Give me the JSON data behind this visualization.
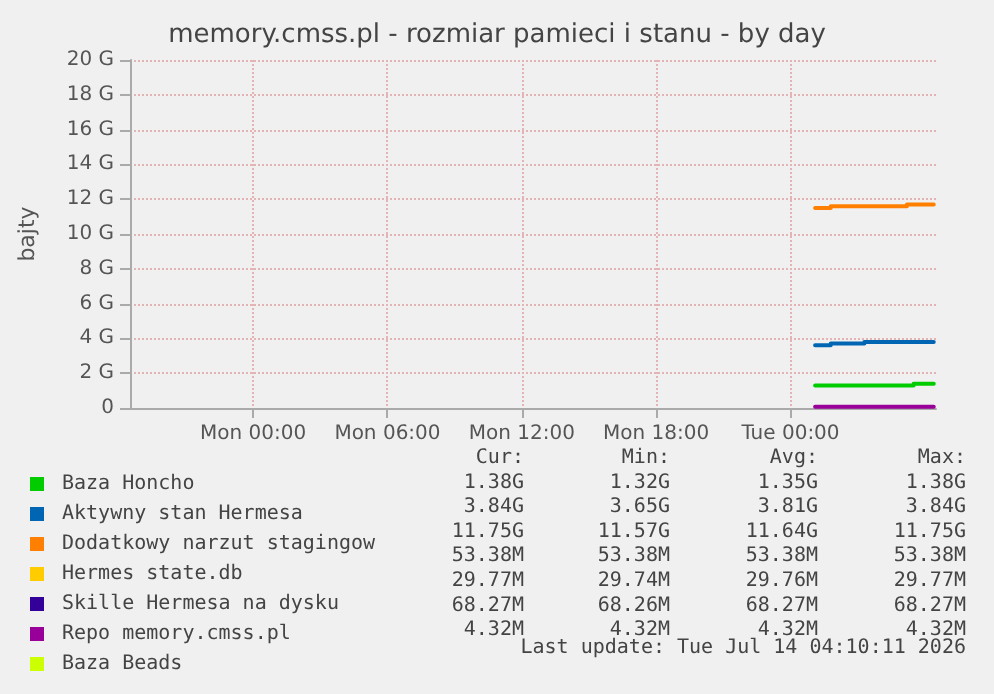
{
  "chart_data": {
    "type": "step",
    "title": "memory.cmss.pl - rozmiar pamieci i stanu - by day",
    "ylabel": "bajty",
    "xlim": [
      "2026-07-12T18:30",
      "2026-07-14T06:30"
    ],
    "xticks": [
      {
        "value": "2026-07-13T00:00",
        "label": "Mon 00:00"
      },
      {
        "value": "2026-07-13T06:00",
        "label": "Mon 06:00"
      },
      {
        "value": "2026-07-13T12:00",
        "label": "Mon 12:00"
      },
      {
        "value": "2026-07-13T18:00",
        "label": "Mon 18:00"
      },
      {
        "value": "2026-07-14T00:00",
        "label": "Tue 00:00"
      }
    ],
    "ylim": [
      0,
      20
    ],
    "yticks": [
      {
        "value": 0,
        "label": "0"
      },
      {
        "value": 2,
        "label": "2 G"
      },
      {
        "value": 4,
        "label": "4 G"
      },
      {
        "value": 6,
        "label": "6 G"
      },
      {
        "value": 8,
        "label": "8 G"
      },
      {
        "value": 10,
        "label": "10 G"
      },
      {
        "value": 12,
        "label": "12 G"
      },
      {
        "value": 14,
        "label": "14 G"
      },
      {
        "value": 16,
        "label": "16 G"
      },
      {
        "value": 18,
        "label": "18 G"
      },
      {
        "value": 20,
        "label": "20 G"
      }
    ],
    "grid": true,
    "legend": "bottom",
    "marker": "none",
    "line_style": "solid",
    "series": [
      {
        "name": "Baza Honcho",
        "color": "#00cc00",
        "x": [
          "2026-07-14T01:06",
          "2026-07-14T05:30",
          "2026-07-14T06:24"
        ],
        "values": [
          1.3,
          1.4,
          1.4
        ]
      },
      {
        "name": "Aktywny stan Hermesa",
        "color": "#0066b3",
        "x": [
          "2026-07-14T01:06",
          "2026-07-14T01:48",
          "2026-07-14T03:18",
          "2026-07-14T06:24"
        ],
        "values": [
          3.6,
          3.7,
          3.8,
          3.8
        ]
      },
      {
        "name": "Dodatkowy narzut stagingow",
        "color": "#ff8000",
        "x": [
          "2026-07-14T01:06",
          "2026-07-14T01:48",
          "2026-07-14T05:12",
          "2026-07-14T06:24"
        ],
        "values": [
          11.5,
          11.6,
          11.7,
          11.7
        ]
      },
      {
        "name": "Hermes state.db",
        "color": "#ffcc00"
      },
      {
        "name": "Skille Hermesa na dysku",
        "color": "#330099"
      },
      {
        "name": "Repo memory.cmss.pl",
        "color": "#990099",
        "x": [
          "2026-07-14T01:06",
          "2026-07-14T06:24"
        ],
        "values": [
          0.07,
          0.07
        ]
      },
      {
        "name": "Baza Beads",
        "color": "#ccff00"
      }
    ],
    "annotations": [
      "Cur:",
      "Min:",
      "Avg:",
      "Max:",
      "1.38G",
      "1.32G",
      "1.35G",
      "1.38G",
      "3.84G",
      "3.65G",
      "3.81G",
      "3.84G",
      "11.75G",
      "11.57G",
      "11.64G",
      "11.75G",
      "53.38M",
      "53.38M",
      "53.38M",
      "53.38M",
      "29.77M",
      "29.74M",
      "29.76M",
      "29.77M",
      "68.27M",
      "68.26M",
      "68.27M",
      "68.27M",
      "4.32M",
      "4.32M",
      "4.32M",
      "4.32M",
      "Last update: Tue Jul 14 04:10:11 2026"
    ]
  }
}
